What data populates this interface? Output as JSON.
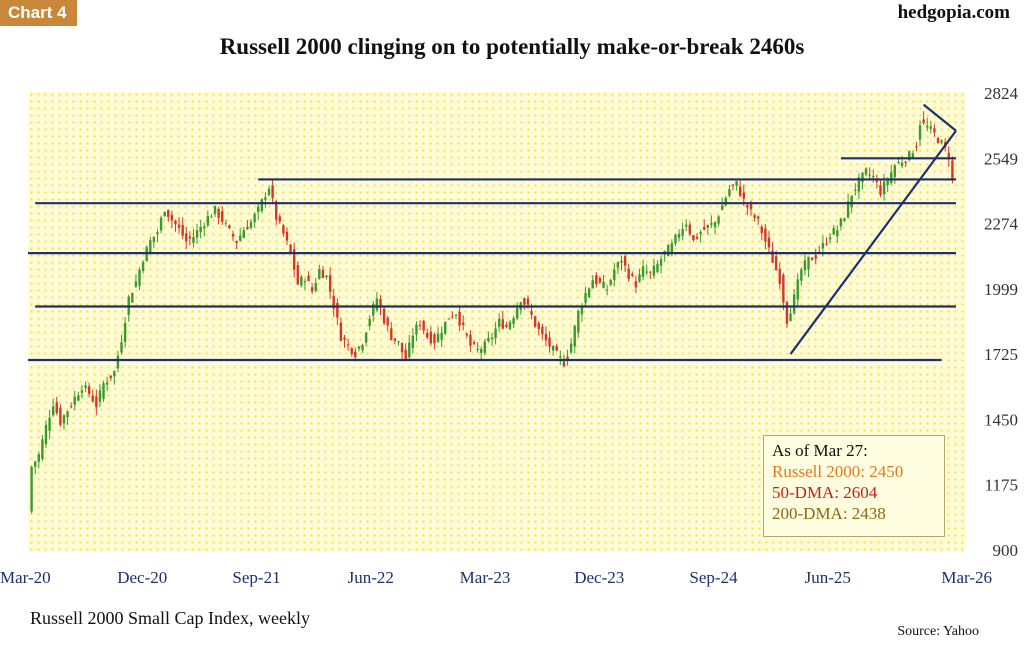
{
  "header": {
    "tag": "Chart 4",
    "brand": "hedgopia.com",
    "title": "Russell 2000 clinging on to potentially make-or-break 2460s"
  },
  "footer": {
    "subtitle": "Russell 2000 Small Cap Index, weekly",
    "source": "Source: Yahoo"
  },
  "legend": {
    "heading": "As of Mar 27:",
    "line1": "Russell 2000: 2450",
    "line2": "50-DMA: 2604",
    "line3": "200-DMA: 2438"
  },
  "colors": {
    "background": "#fffbd6",
    "dots": "#f2e23a",
    "up": "#3a9a2e",
    "down": "#d6352c",
    "lines": "#1d2f6f",
    "legend_line1": "#e07a1f",
    "legend_line2": "#cc1d1d",
    "legend_line3": "#8a6a10",
    "tag": "#c8873a"
  },
  "chart_data": {
    "type": "candlestick",
    "title": "Russell 2000 clinging on to potentially make-or-break 2460s",
    "subtitle": "Russell 2000 Small Cap Index, weekly",
    "x_ticks": [
      "Mar-20",
      "Dec-20",
      "Sep-21",
      "Jun-22",
      "Mar-23",
      "Dec-23",
      "Sep-24",
      "Jun-25",
      "Mar-26"
    ],
    "x_range": [
      "Mar-20",
      "Mar-26"
    ],
    "y_ticks": [
      900,
      1175,
      1450,
      1725,
      1999,
      2274,
      2549,
      2824
    ],
    "ylim": [
      900,
      2824
    ],
    "grid": false,
    "legend_position": "bottom-right",
    "series_path": [
      [
        0,
        1060
      ],
      [
        1,
        1250
      ],
      [
        3,
        1300
      ],
      [
        5,
        1420
      ],
      [
        7,
        1520
      ],
      [
        9,
        1440
      ],
      [
        11,
        1490
      ],
      [
        13,
        1540
      ],
      [
        15,
        1590
      ],
      [
        17,
        1560
      ],
      [
        19,
        1510
      ],
      [
        21,
        1600
      ],
      [
        24,
        1650
      ],
      [
        26,
        1790
      ],
      [
        28,
        1960
      ],
      [
        30,
        2030
      ],
      [
        32,
        2130
      ],
      [
        34,
        2200
      ],
      [
        36,
        2240
      ],
      [
        38,
        2340
      ],
      [
        40,
        2290
      ],
      [
        42,
        2250
      ],
      [
        44,
        2200
      ],
      [
        46,
        2220
      ],
      [
        48,
        2260
      ],
      [
        50,
        2300
      ],
      [
        52,
        2330
      ],
      [
        54,
        2290
      ],
      [
        56,
        2240
      ],
      [
        58,
        2200
      ],
      [
        60,
        2250
      ],
      [
        62,
        2280
      ],
      [
        64,
        2330
      ],
      [
        66,
        2400
      ],
      [
        67,
        2430
      ],
      [
        69,
        2300
      ],
      [
        71,
        2230
      ],
      [
        73,
        2150
      ],
      [
        75,
        2020
      ],
      [
        77,
        2050
      ],
      [
        79,
        1990
      ],
      [
        81,
        2080
      ],
      [
        83,
        2050
      ],
      [
        85,
        1930
      ],
      [
        87,
        1800
      ],
      [
        89,
        1760
      ],
      [
        91,
        1730
      ],
      [
        93,
        1780
      ],
      [
        95,
        1880
      ],
      [
        97,
        1960
      ],
      [
        99,
        1870
      ],
      [
        101,
        1800
      ],
      [
        103,
        1770
      ],
      [
        105,
        1700
      ],
      [
        107,
        1810
      ],
      [
        109,
        1860
      ],
      [
        111,
        1800
      ],
      [
        113,
        1780
      ],
      [
        115,
        1830
      ],
      [
        117,
        1880
      ],
      [
        119,
        1900
      ],
      [
        121,
        1830
      ],
      [
        123,
        1760
      ],
      [
        125,
        1740
      ],
      [
        127,
        1760
      ],
      [
        129,
        1800
      ],
      [
        131,
        1860
      ],
      [
        133,
        1840
      ],
      [
        135,
        1890
      ],
      [
        137,
        1960
      ],
      [
        139,
        1920
      ],
      [
        141,
        1850
      ],
      [
        143,
        1800
      ],
      [
        145,
        1760
      ],
      [
        147,
        1720
      ],
      [
        149,
        1690
      ],
      [
        151,
        1770
      ],
      [
        153,
        1900
      ],
      [
        155,
        1980
      ],
      [
        157,
        2040
      ],
      [
        159,
        2020
      ],
      [
        161,
        2000
      ],
      [
        163,
        2080
      ],
      [
        165,
        2120
      ],
      [
        167,
        2060
      ],
      [
        169,
        2020
      ],
      [
        171,
        2080
      ],
      [
        173,
        2060
      ],
      [
        175,
        2100
      ],
      [
        177,
        2150
      ],
      [
        179,
        2180
      ],
      [
        181,
        2240
      ],
      [
        183,
        2280
      ],
      [
        185,
        2200
      ],
      [
        187,
        2240
      ],
      [
        189,
        2260
      ],
      [
        191,
        2280
      ],
      [
        193,
        2350
      ],
      [
        195,
        2420
      ],
      [
        197,
        2440
      ],
      [
        199,
        2370
      ],
      [
        201,
        2320
      ],
      [
        203,
        2280
      ],
      [
        205,
        2200
      ],
      [
        207,
        2120
      ],
      [
        209,
        2040
      ],
      [
        211,
        1870
      ],
      [
        213,
        1960
      ],
      [
        215,
        2080
      ],
      [
        217,
        2120
      ],
      [
        219,
        2140
      ],
      [
        221,
        2180
      ],
      [
        223,
        2230
      ],
      [
        225,
        2250
      ],
      [
        227,
        2310
      ],
      [
        229,
        2400
      ],
      [
        231,
        2450
      ],
      [
        233,
        2490
      ],
      [
        235,
        2470
      ],
      [
        237,
        2410
      ],
      [
        239,
        2460
      ],
      [
        241,
        2520
      ],
      [
        243,
        2540
      ],
      [
        245,
        2560
      ],
      [
        247,
        2610
      ],
      [
        248,
        2700
      ],
      [
        250,
        2680
      ],
      [
        252,
        2650
      ],
      [
        254,
        2610
      ],
      [
        256,
        2560
      ],
      [
        257,
        2450
      ]
    ],
    "trend_lines": [
      {
        "name": "support-1",
        "x": [
          0,
          254
        ],
        "y": [
          1700,
          1700
        ]
      },
      {
        "name": "support-2",
        "x": [
          2,
          258
        ],
        "y": [
          1925,
          1925
        ]
      },
      {
        "name": "support-3",
        "x": [
          0,
          258
        ],
        "y": [
          2150,
          2150
        ]
      },
      {
        "name": "support-4",
        "x": [
          2,
          258
        ],
        "y": [
          2360,
          2360
        ]
      },
      {
        "name": "resistance-1",
        "x": [
          64,
          258
        ],
        "y": [
          2460,
          2460
        ]
      },
      {
        "name": "resistance-2",
        "x": [
          226,
          258
        ],
        "y": [
          2549,
          2549
        ]
      },
      {
        "name": "rising-trendline",
        "x": [
          212,
          258
        ],
        "y": [
          1725,
          2665
        ]
      },
      {
        "name": "falling-trendline",
        "x": [
          249,
          258
        ],
        "y": [
          2775,
          2665
        ]
      }
    ]
  }
}
